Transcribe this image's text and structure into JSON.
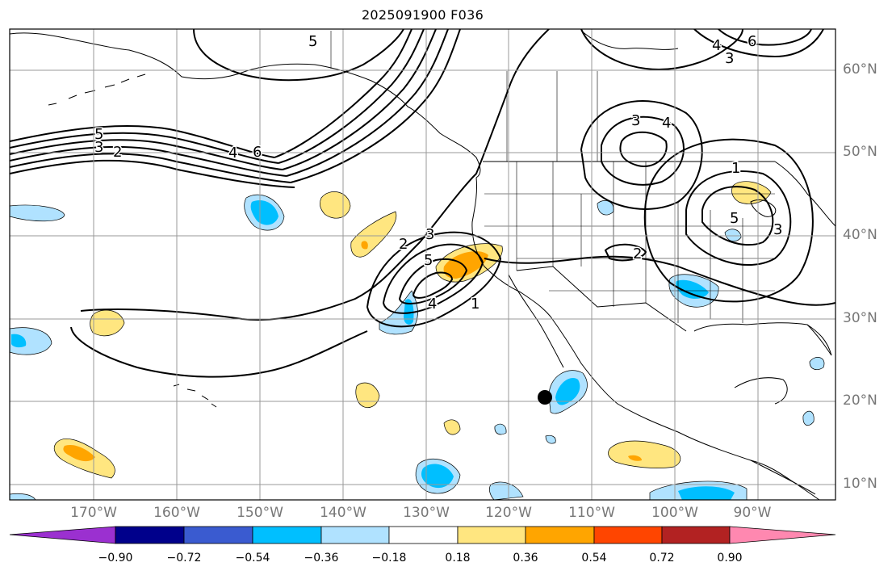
{
  "title": "2025091900 F036",
  "lat_labels": [
    "60°N",
    "50°N",
    "40°N",
    "30°N",
    "20°N",
    "10°N"
  ],
  "lon_labels": [
    "170°W",
    "160°W",
    "150°W",
    "140°W",
    "130°W",
    "120°W",
    "110°W",
    "100°W",
    "90°W"
  ],
  "colorbar": {
    "tick_labels": [
      "−0.90",
      "−0.72",
      "−0.54",
      "−0.36",
      "−0.18",
      "0.18",
      "0.36",
      "0.54",
      "0.72",
      "0.90"
    ],
    "colors": [
      "#9b30d0",
      "#00008b",
      "#3a5bd0",
      "#00bfff",
      "#b0e2ff",
      "#ffffff",
      "#ffe680",
      "#ffa500",
      "#ff4500",
      "#b22222",
      "#ff88b0"
    ]
  },
  "contour_labels": [
    "5",
    "5",
    "3",
    "2",
    "4",
    "6",
    "2",
    "3",
    "5",
    "4",
    "1",
    "3",
    "4",
    "3",
    "4",
    "6",
    "1",
    "5",
    "3",
    "2"
  ],
  "colors": {
    "land_outline": "#000000",
    "grid": "#999999",
    "contour": "#000000",
    "marker": "#000000"
  }
}
